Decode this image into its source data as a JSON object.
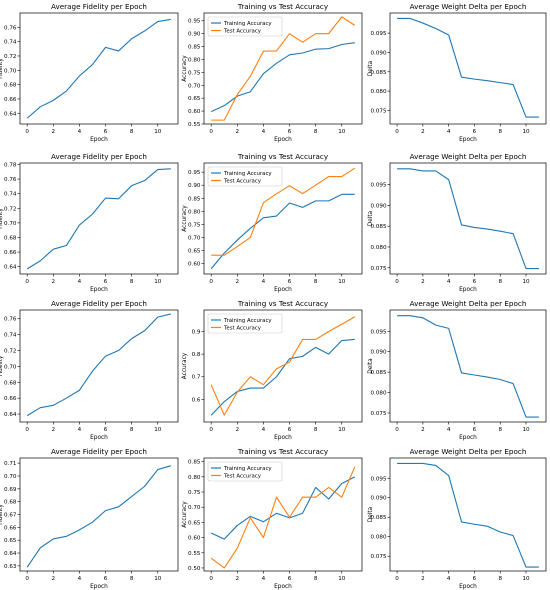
{
  "chart_data": [
    {
      "type": "line",
      "title": "Average Fidelity per Epoch",
      "xlabel": "Epoch",
      "ylabel": "Fidelity",
      "xlim": [
        -0.55,
        11.55
      ],
      "ylim": [
        0.625,
        0.78
      ],
      "xticks": [
        0,
        2,
        4,
        6,
        8,
        10
      ],
      "yticks": [
        0.64,
        0.66,
        0.68,
        0.7,
        0.72,
        0.74,
        0.76
      ],
      "ytick_labels": [
        "0.64",
        "0.66",
        "0.68",
        "0.70",
        "0.72",
        "0.74",
        "0.76"
      ],
      "x": [
        0,
        1,
        2,
        3,
        4,
        5,
        6,
        7,
        8,
        9,
        10,
        11
      ],
      "series": [
        {
          "color": "#1f77b4",
          "values": [
            0.633,
            0.649,
            0.658,
            0.671,
            0.692,
            0.708,
            0.732,
            0.727,
            0.744,
            0.755,
            0.768,
            0.771
          ]
        }
      ]
    },
    {
      "type": "line",
      "title": "Training vs Test Accuracy",
      "xlabel": "Epoch",
      "ylabel": "Accuracy",
      "xlim": [
        -0.55,
        11.55
      ],
      "ylim": [
        0.55,
        0.98
      ],
      "xticks": [
        0,
        2,
        4,
        6,
        8,
        10
      ],
      "yticks": [
        0.55,
        0.6,
        0.65,
        0.7,
        0.75,
        0.8,
        0.85,
        0.9,
        0.95
      ],
      "ytick_labels": [
        "0.55",
        "0.60",
        "0.65",
        "0.70",
        "0.75",
        "0.80",
        "0.85",
        "0.90",
        "0.95"
      ],
      "legend": "upper-left",
      "x": [
        0,
        1,
        2,
        3,
        4,
        5,
        6,
        7,
        8,
        9,
        10,
        11
      ],
      "series": [
        {
          "name": "Training Accuracy",
          "color": "#1f77b4",
          "values": [
            0.598,
            0.621,
            0.658,
            0.675,
            0.745,
            0.785,
            0.818,
            0.825,
            0.84,
            0.842,
            0.858,
            0.865
          ]
        },
        {
          "name": "Test Accuracy",
          "color": "#ff7f0e",
          "values": [
            0.565,
            0.565,
            0.664,
            0.735,
            0.832,
            0.833,
            0.9,
            0.867,
            0.9,
            0.9,
            0.965,
            0.932
          ]
        }
      ]
    },
    {
      "type": "line",
      "title": "Average Weight Delta per Epoch",
      "xlabel": "Epoch",
      "ylabel": "Delta",
      "xlim": [
        -0.55,
        11.55
      ],
      "ylim": [
        0.0715,
        0.1002
      ],
      "xticks": [
        0,
        2,
        4,
        6,
        8,
        10
      ],
      "yticks": [
        0.075,
        0.08,
        0.085,
        0.09,
        0.095
      ],
      "ytick_labels": [
        "0.075",
        "0.080",
        "0.085",
        "0.090",
        "0.095"
      ],
      "x": [
        0,
        1,
        2,
        3,
        4,
        5,
        6,
        7,
        8,
        9,
        10,
        11
      ],
      "series": [
        {
          "color": "#1f77b4",
          "values": [
            0.0988,
            0.0988,
            0.0976,
            0.0962,
            0.0945,
            0.0836,
            0.0831,
            0.0827,
            0.0822,
            0.0817,
            0.0733,
            0.0733
          ]
        }
      ]
    },
    {
      "type": "line",
      "title": "Average Fidelity per Epoch",
      "xlabel": "Epoch",
      "ylabel": "Fidelity",
      "xlim": [
        -0.55,
        11.55
      ],
      "ylim": [
        0.63,
        0.782
      ],
      "xticks": [
        0,
        2,
        4,
        6,
        8,
        10
      ],
      "yticks": [
        0.64,
        0.66,
        0.68,
        0.7,
        0.72,
        0.74,
        0.76,
        0.78
      ],
      "ytick_labels": [
        "0.64",
        "0.66",
        "0.68",
        "0.70",
        "0.72",
        "0.74",
        "0.76",
        "0.78"
      ],
      "x": [
        0,
        1,
        2,
        3,
        4,
        5,
        6,
        7,
        8,
        9,
        10,
        11
      ],
      "series": [
        {
          "color": "#1f77b4",
          "values": [
            0.637,
            0.648,
            0.664,
            0.669,
            0.697,
            0.712,
            0.734,
            0.733,
            0.751,
            0.758,
            0.773,
            0.774
          ]
        }
      ]
    },
    {
      "type": "line",
      "title": "Training vs Test Accuracy",
      "xlabel": "Epoch",
      "ylabel": "Accuracy",
      "xlim": [
        -0.55,
        11.55
      ],
      "ylim": [
        0.56,
        0.985
      ],
      "xticks": [
        0,
        2,
        4,
        6,
        8,
        10
      ],
      "yticks": [
        0.6,
        0.65,
        0.7,
        0.75,
        0.8,
        0.85,
        0.9,
        0.95
      ],
      "ytick_labels": [
        "0.60",
        "0.65",
        "0.70",
        "0.75",
        "0.80",
        "0.85",
        "0.90",
        "0.95"
      ],
      "legend": "upper-left",
      "x": [
        0,
        1,
        2,
        3,
        4,
        5,
        6,
        7,
        8,
        9,
        10,
        11
      ],
      "series": [
        {
          "name": "Training Accuracy",
          "color": "#1f77b4",
          "values": [
            0.58,
            0.64,
            0.69,
            0.735,
            0.775,
            0.782,
            0.832,
            0.815,
            0.84,
            0.84,
            0.865,
            0.865
          ]
        },
        {
          "name": "Test Accuracy",
          "color": "#ff7f0e",
          "values": [
            0.632,
            0.632,
            0.665,
            0.7,
            0.833,
            0.867,
            0.898,
            0.868,
            0.9,
            0.933,
            0.933,
            0.965
          ]
        }
      ]
    },
    {
      "type": "line",
      "title": "Average Weight Delta per Epoch",
      "xlabel": "Epoch",
      "ylabel": "Delta",
      "xlim": [
        -0.55,
        11.55
      ],
      "ylim": [
        0.0735,
        0.1002
      ],
      "xticks": [
        0,
        2,
        4,
        6,
        8,
        10
      ],
      "yticks": [
        0.075,
        0.08,
        0.085,
        0.09,
        0.095
      ],
      "ytick_labels": [
        "0.075",
        "0.080",
        "0.085",
        "0.090",
        "0.095"
      ],
      "x": [
        0,
        1,
        2,
        3,
        4,
        5,
        6,
        7,
        8,
        9,
        10,
        11
      ],
      "series": [
        {
          "color": "#1f77b4",
          "values": [
            0.0988,
            0.0988,
            0.0983,
            0.0983,
            0.0962,
            0.0853,
            0.0847,
            0.0843,
            0.0838,
            0.0832,
            0.0748,
            0.0748
          ]
        }
      ]
    },
    {
      "type": "line",
      "title": "Average Fidelity per Epoch",
      "xlabel": "Epoch",
      "ylabel": "Fidelity",
      "xlim": [
        -0.55,
        11.55
      ],
      "ylim": [
        0.63,
        0.771
      ],
      "xticks": [
        0,
        2,
        4,
        6,
        8,
        10
      ],
      "yticks": [
        0.64,
        0.66,
        0.68,
        0.7,
        0.72,
        0.74,
        0.76
      ],
      "ytick_labels": [
        "0.64",
        "0.66",
        "0.68",
        "0.70",
        "0.72",
        "0.74",
        "0.76"
      ],
      "x": [
        0,
        1,
        2,
        3,
        4,
        5,
        6,
        7,
        8,
        9,
        10,
        11
      ],
      "series": [
        {
          "color": "#1f77b4",
          "values": [
            0.638,
            0.648,
            0.651,
            0.66,
            0.67,
            0.694,
            0.713,
            0.72,
            0.735,
            0.745,
            0.762,
            0.766
          ]
        }
      ]
    },
    {
      "type": "line",
      "title": "Training vs Test Accuracy",
      "xlabel": "Epoch",
      "ylabel": "Accuracy",
      "xlim": [
        -0.55,
        11.55
      ],
      "ylim": [
        0.5,
        0.995
      ],
      "xticks": [
        0,
        2,
        4,
        6,
        8,
        10
      ],
      "yticks": [
        0.6,
        0.7,
        0.8,
        0.9
      ],
      "ytick_labels": [
        "0.6",
        "0.7",
        "0.8",
        "0.9"
      ],
      "legend": "upper-left",
      "x": [
        0,
        1,
        2,
        3,
        4,
        5,
        6,
        7,
        8,
        9,
        10,
        11
      ],
      "series": [
        {
          "name": "Training Accuracy",
          "color": "#1f77b4",
          "values": [
            0.53,
            0.59,
            0.635,
            0.65,
            0.65,
            0.7,
            0.78,
            0.79,
            0.83,
            0.8,
            0.86,
            0.865
          ]
        },
        {
          "name": "Test Accuracy",
          "color": "#ff7f0e",
          "values": [
            0.665,
            0.53,
            0.632,
            0.7,
            0.665,
            0.735,
            0.765,
            0.865,
            0.865,
            0.9,
            0.932,
            0.965
          ]
        }
      ]
    },
    {
      "type": "line",
      "title": "Average Weight Delta per Epoch",
      "xlabel": "Epoch",
      "ylabel": "Delta",
      "xlim": [
        -0.55,
        11.55
      ],
      "ylim": [
        0.0728,
        0.1002
      ],
      "xticks": [
        0,
        2,
        4,
        6,
        8,
        10
      ],
      "yticks": [
        0.075,
        0.08,
        0.085,
        0.09,
        0.095
      ],
      "ytick_labels": [
        "0.075",
        "0.080",
        "0.085",
        "0.090",
        "0.095"
      ],
      "x": [
        0,
        1,
        2,
        3,
        4,
        5,
        6,
        7,
        8,
        9,
        10,
        11
      ],
      "series": [
        {
          "color": "#1f77b4",
          "values": [
            0.0988,
            0.0988,
            0.0983,
            0.0965,
            0.0957,
            0.0848,
            0.0843,
            0.0838,
            0.0832,
            0.0822,
            0.074,
            0.074
          ]
        }
      ]
    },
    {
      "type": "line",
      "title": "Average Fidelity per Epoch",
      "xlabel": "Epoch",
      "ylabel": "Fidelity",
      "xlim": [
        -0.55,
        11.55
      ],
      "ylim": [
        0.626,
        0.714
      ],
      "xticks": [
        0,
        2,
        4,
        6,
        8,
        10
      ],
      "yticks": [
        0.63,
        0.64,
        0.65,
        0.66,
        0.67,
        0.68,
        0.69,
        0.7,
        0.71
      ],
      "ytick_labels": [
        "0.63",
        "0.64",
        "0.65",
        "0.66",
        "0.67",
        "0.68",
        "0.69",
        "0.70",
        "0.71"
      ],
      "x": [
        0,
        1,
        2,
        3,
        4,
        5,
        6,
        7,
        8,
        9,
        10,
        11
      ],
      "series": [
        {
          "color": "#1f77b4",
          "values": [
            0.629,
            0.644,
            0.651,
            0.653,
            0.658,
            0.664,
            0.673,
            0.676,
            0.684,
            0.692,
            0.705,
            0.708
          ]
        }
      ]
    },
    {
      "type": "line",
      "title": "Training vs Test Accuracy",
      "xlabel": "Epoch",
      "ylabel": "Accuracy",
      "xlim": [
        -0.55,
        11.55
      ],
      "ylim": [
        0.49,
        0.862
      ],
      "xticks": [
        0,
        2,
        4,
        6,
        8,
        10
      ],
      "yticks": [
        0.5,
        0.55,
        0.6,
        0.65,
        0.7,
        0.75,
        0.8,
        0.85
      ],
      "ytick_labels": [
        "0.50",
        "0.55",
        "0.60",
        "0.65",
        "0.70",
        "0.75",
        "0.80",
        "0.85"
      ],
      "legend": "upper-left",
      "x": [
        0,
        1,
        2,
        3,
        4,
        5,
        6,
        7,
        8,
        9,
        10,
        11
      ],
      "series": [
        {
          "name": "Training Accuracy",
          "color": "#1f77b4",
          "values": [
            0.615,
            0.595,
            0.64,
            0.67,
            0.652,
            0.68,
            0.665,
            0.68,
            0.765,
            0.727,
            0.778,
            0.8
          ]
        },
        {
          "name": "Test Accuracy",
          "color": "#ff7f0e",
          "values": [
            0.532,
            0.5,
            0.565,
            0.665,
            0.6,
            0.733,
            0.667,
            0.733,
            0.733,
            0.765,
            0.733,
            0.833
          ]
        }
      ]
    },
    {
      "type": "line",
      "title": "Average Weight Delta per Epoch",
      "xlabel": "Epoch",
      "ylabel": "Delta",
      "xlim": [
        -0.55,
        11.55
      ],
      "ylim": [
        0.0712,
        0.1002
      ],
      "xticks": [
        0,
        2,
        4,
        6,
        8,
        10
      ],
      "yticks": [
        0.075,
        0.08,
        0.085,
        0.09,
        0.095
      ],
      "ytick_labels": [
        "0.075",
        "0.080",
        "0.085",
        "0.090",
        "0.095"
      ],
      "x": [
        0,
        1,
        2,
        3,
        4,
        5,
        6,
        7,
        8,
        9,
        10,
        11
      ],
      "series": [
        {
          "color": "#1f77b4",
          "values": [
            0.0988,
            0.0988,
            0.0988,
            0.0983,
            0.0957,
            0.0838,
            0.0832,
            0.0827,
            0.0812,
            0.0803,
            0.0722,
            0.0722
          ]
        }
      ]
    }
  ]
}
